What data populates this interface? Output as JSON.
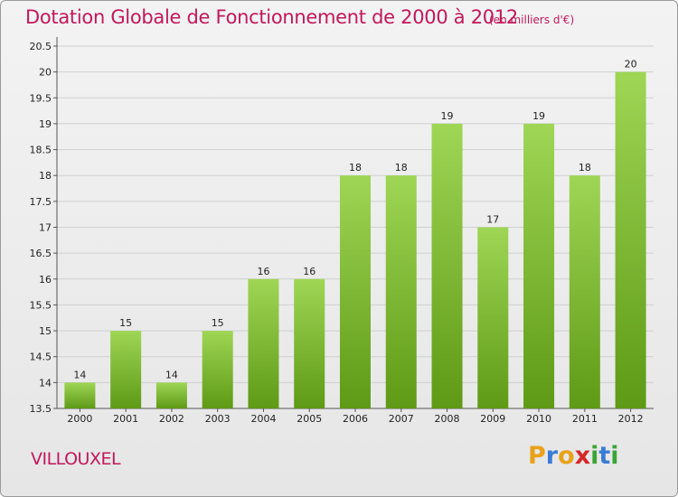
{
  "title": "Dotation Globale de Fonctionnement de 2000 à 2012",
  "subtitle": "(en milliers d'€)",
  "commune": "VILLOUXEL",
  "logo": {
    "letters": [
      "P",
      "r",
      "o",
      "x",
      "i",
      "t",
      "i"
    ],
    "colors": [
      "#e8a21b",
      "#3a7bd5",
      "#e8a21b",
      "#d62828",
      "#3aa537",
      "#3a7bd5",
      "#3aa537"
    ]
  },
  "colors": {
    "title": "#c2185b",
    "bar_top": "#9fd655",
    "bar_bottom": "#5e9a16"
  },
  "chart_data": {
    "type": "bar",
    "categories": [
      "2000",
      "2001",
      "2002",
      "2003",
      "2004",
      "2005",
      "2006",
      "2007",
      "2008",
      "2009",
      "2010",
      "2011",
      "2012"
    ],
    "values": [
      14,
      15,
      14,
      15,
      16,
      16,
      18,
      18,
      19,
      17,
      19,
      18,
      20
    ],
    "labels": [
      "14",
      "15",
      "14",
      "15",
      "16",
      "16",
      "18",
      "18",
      "19",
      "17",
      "19",
      "18",
      "20"
    ],
    "yticks": [
      13.5,
      14,
      14.5,
      15,
      15.5,
      16,
      16.5,
      17,
      17.5,
      18,
      18.5,
      19,
      19.5,
      20,
      20.5
    ],
    "ytick_labels": [
      "13.5",
      "14",
      "14.5",
      "15",
      "15.5",
      "16",
      "16.5",
      "17",
      "17.5",
      "18",
      "18.5",
      "19",
      "19.5",
      "20",
      "20.5"
    ],
    "ylim": [
      13.5,
      20.5
    ],
    "grid": true
  }
}
